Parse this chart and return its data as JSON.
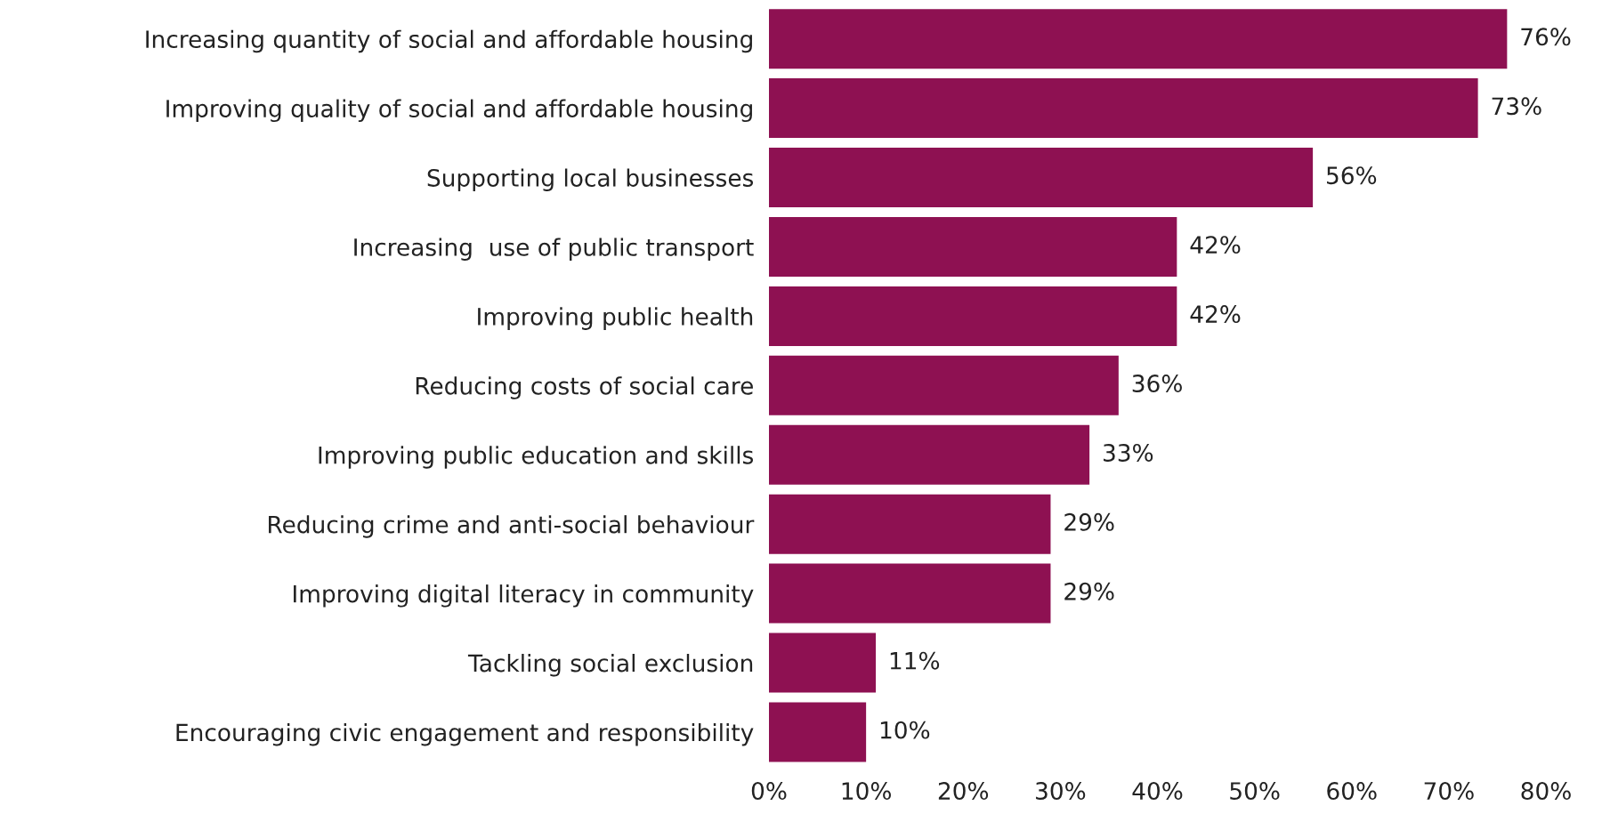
{
  "chart_data": {
    "type": "bar",
    "orientation": "horizontal",
    "categories": [
      "Increasing quantity of social and affordable housing",
      "Improving quality of social and affordable housing",
      "Supporting local businesses",
      "Increasing  use of public transport",
      "Improving public health",
      "Reducing costs of social care",
      "Improving public education and skills",
      "Reducing crime and anti-social behaviour",
      "Improving digital literacy in community",
      "Tackling social exclusion",
      "Encouraging civic engagement and responsibility"
    ],
    "values": [
      76,
      73,
      56,
      42,
      42,
      36,
      33,
      29,
      29,
      11,
      10
    ],
    "value_labels": [
      "76%",
      "73%",
      "56%",
      "42%",
      "42%",
      "36%",
      "33%",
      "29%",
      "29%",
      "11%",
      "10%"
    ],
    "color": "#8e1152",
    "xlim": [
      0,
      80
    ],
    "xticks": [
      {
        "value": 0,
        "label": "0%"
      },
      {
        "value": 10,
        "label": "10%"
      },
      {
        "value": 20,
        "label": "20%"
      },
      {
        "value": 30,
        "label": "30%"
      },
      {
        "value": 40,
        "label": "40%"
      },
      {
        "value": 50,
        "label": "50%"
      },
      {
        "value": 60,
        "label": "60%"
      },
      {
        "value": 70,
        "label": "70%"
      },
      {
        "value": 80,
        "label": "80%"
      }
    ],
    "grid": false,
    "legend": false
  }
}
